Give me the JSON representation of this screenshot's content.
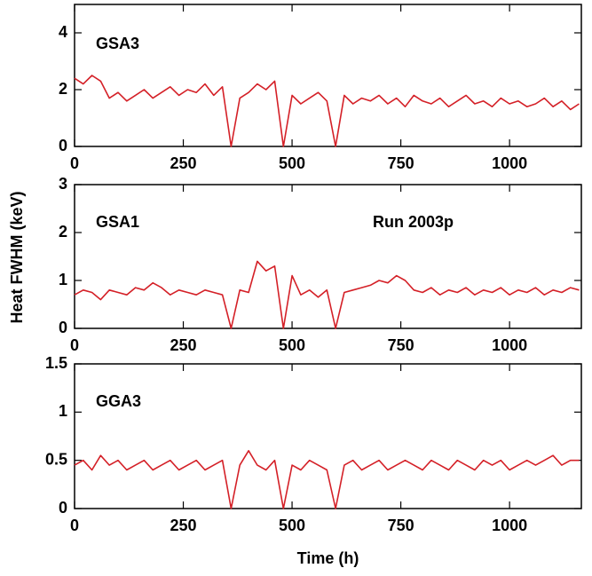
{
  "chart_data": [
    {
      "type": "line",
      "annotations": [
        "GSA3"
      ],
      "x": [
        0,
        20,
        40,
        60,
        80,
        100,
        120,
        140,
        160,
        180,
        200,
        220,
        240,
        260,
        280,
        300,
        320,
        340,
        360,
        380,
        400,
        420,
        440,
        460,
        480,
        500,
        520,
        540,
        560,
        580,
        600,
        620,
        640,
        660,
        680,
        700,
        720,
        740,
        760,
        780,
        800,
        820,
        840,
        860,
        880,
        900,
        920,
        940,
        960,
        980,
        1000,
        1020,
        1040,
        1060,
        1080,
        1100,
        1120,
        1140,
        1160
      ],
      "values": [
        2.4,
        2.2,
        2.5,
        2.3,
        1.7,
        1.9,
        1.6,
        1.8,
        2.0,
        1.7,
        1.9,
        2.1,
        1.8,
        2.0,
        1.9,
        2.2,
        1.8,
        2.1,
        0,
        1.7,
        1.9,
        2.2,
        2.0,
        2.3,
        0,
        1.8,
        1.5,
        1.7,
        1.9,
        1.6,
        0,
        1.8,
        1.5,
        1.7,
        1.6,
        1.8,
        1.5,
        1.7,
        1.4,
        1.8,
        1.6,
        1.5,
        1.7,
        1.4,
        1.6,
        1.8,
        1.5,
        1.6,
        1.4,
        1.7,
        1.5,
        1.6,
        1.4,
        1.5,
        1.7,
        1.4,
        1.6,
        1.3,
        1.5
      ],
      "color": "#d42027",
      "xlim": [
        0,
        1165
      ],
      "xticks": [
        0,
        250,
        500,
        750,
        1000
      ],
      "ylim": [
        0,
        5
      ],
      "yticks": [
        0,
        2,
        4
      ]
    },
    {
      "type": "line",
      "annotations": [
        "GSA1",
        "Run 2003p"
      ],
      "ylabel": "Heat FWHM (keV)",
      "x": [
        0,
        20,
        40,
        60,
        80,
        100,
        120,
        140,
        160,
        180,
        200,
        220,
        240,
        260,
        280,
        300,
        320,
        340,
        360,
        380,
        400,
        420,
        440,
        460,
        480,
        500,
        520,
        540,
        560,
        580,
        600,
        620,
        640,
        660,
        680,
        700,
        720,
        740,
        760,
        780,
        800,
        820,
        840,
        860,
        880,
        900,
        920,
        940,
        960,
        980,
        1000,
        1020,
        1040,
        1060,
        1080,
        1100,
        1120,
        1140,
        1160
      ],
      "values": [
        0.7,
        0.8,
        0.75,
        0.6,
        0.8,
        0.75,
        0.7,
        0.85,
        0.8,
        0.95,
        0.85,
        0.7,
        0.8,
        0.75,
        0.7,
        0.8,
        0.75,
        0.7,
        0,
        0.8,
        0.75,
        1.4,
        1.2,
        1.3,
        0,
        1.1,
        0.7,
        0.8,
        0.65,
        0.8,
        0,
        0.75,
        0.8,
        0.85,
        0.9,
        1.0,
        0.95,
        1.1,
        1.0,
        0.8,
        0.75,
        0.85,
        0.7,
        0.8,
        0.75,
        0.85,
        0.7,
        0.8,
        0.75,
        0.85,
        0.7,
        0.8,
        0.75,
        0.85,
        0.7,
        0.8,
        0.75,
        0.85,
        0.8
      ],
      "color": "#d42027",
      "xlim": [
        0,
        1165
      ],
      "xticks": [
        0,
        250,
        500,
        750,
        1000
      ],
      "ylim": [
        0,
        3
      ],
      "yticks": [
        0,
        1,
        2,
        3
      ]
    },
    {
      "type": "line",
      "annotations": [
        "GGA3"
      ],
      "xlabel": "Time (h)",
      "x": [
        0,
        20,
        40,
        60,
        80,
        100,
        120,
        140,
        160,
        180,
        200,
        220,
        240,
        260,
        280,
        300,
        320,
        340,
        360,
        380,
        400,
        420,
        440,
        460,
        480,
        500,
        520,
        540,
        560,
        580,
        600,
        620,
        640,
        660,
        680,
        700,
        720,
        740,
        760,
        780,
        800,
        820,
        840,
        860,
        880,
        900,
        920,
        940,
        960,
        980,
        1000,
        1020,
        1040,
        1060,
        1080,
        1100,
        1120,
        1140,
        1160
      ],
      "values": [
        0.45,
        0.5,
        0.4,
        0.55,
        0.45,
        0.5,
        0.4,
        0.45,
        0.5,
        0.4,
        0.45,
        0.5,
        0.4,
        0.45,
        0.5,
        0.4,
        0.45,
        0.5,
        0,
        0.45,
        0.6,
        0.45,
        0.4,
        0.5,
        0,
        0.45,
        0.4,
        0.5,
        0.45,
        0.4,
        0,
        0.45,
        0.5,
        0.4,
        0.45,
        0.5,
        0.4,
        0.45,
        0.5,
        0.45,
        0.4,
        0.5,
        0.45,
        0.4,
        0.5,
        0.45,
        0.4,
        0.5,
        0.45,
        0.5,
        0.4,
        0.45,
        0.5,
        0.45,
        0.5,
        0.55,
        0.45,
        0.5,
        0.5
      ],
      "color": "#d42027",
      "xlim": [
        0,
        1165
      ],
      "xticks": [
        0,
        250,
        500,
        750,
        1000
      ],
      "ylim": [
        0,
        1.5
      ],
      "yticks": [
        0,
        0.5,
        1,
        1.5
      ]
    }
  ]
}
